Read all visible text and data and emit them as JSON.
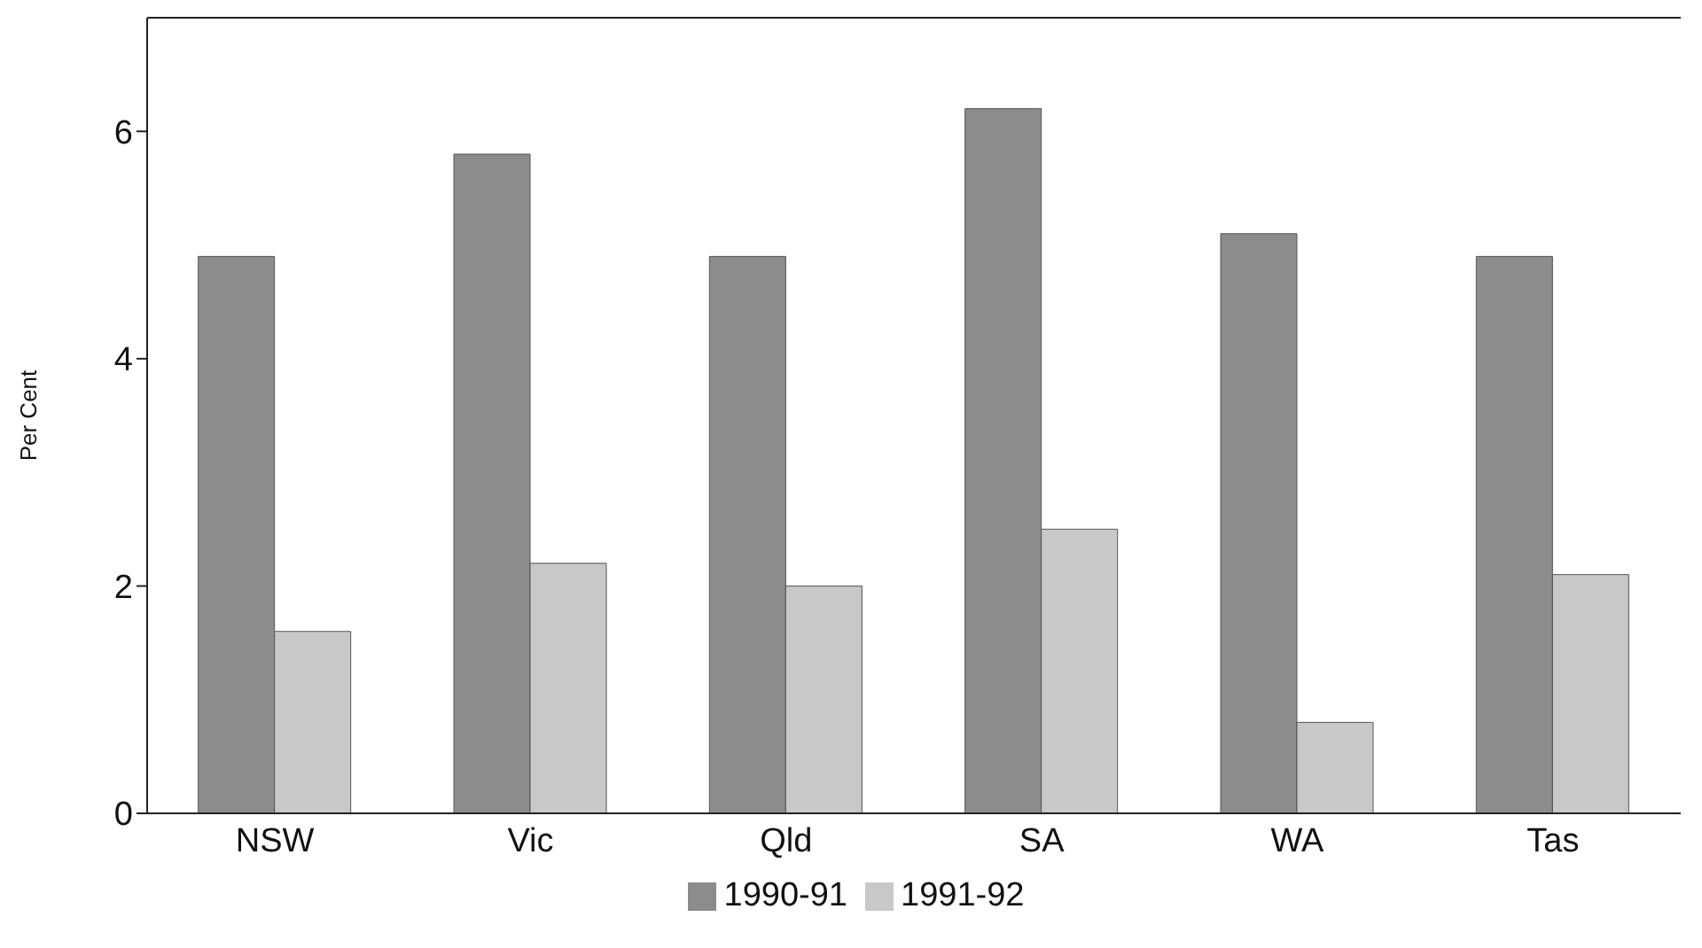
{
  "chart_data": {
    "type": "bar",
    "ylabel": "Per Cent",
    "categories": [
      "NSW",
      "Vic",
      "Qld",
      "SA",
      "WA",
      "Tas"
    ],
    "series": [
      {
        "name": "1990-91",
        "color": "#8c8c8c",
        "values": [
          4.9,
          5.8,
          4.9,
          6.2,
          5.1,
          4.9
        ]
      },
      {
        "name": "1991-92",
        "color": "#c8c8c8",
        "values": [
          1.6,
          2.2,
          2.0,
          2.5,
          0.8,
          2.1
        ]
      }
    ],
    "ylim": [
      0,
      7
    ],
    "yticks": [
      0,
      2,
      4,
      6
    ],
    "legend": "bottom"
  }
}
